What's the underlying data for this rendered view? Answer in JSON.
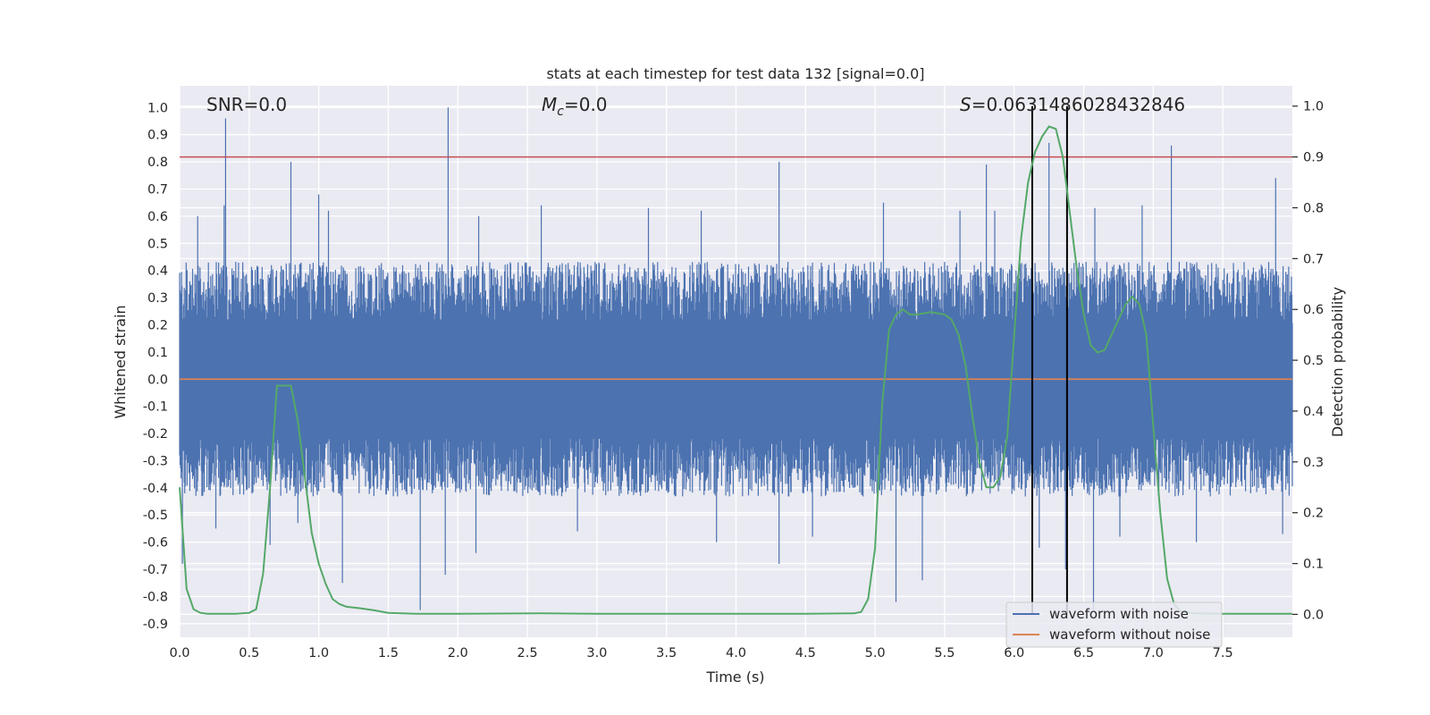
{
  "chart_data": {
    "type": "line",
    "title": "stats at each timestep for test data 132 [signal=0.0]",
    "xlabel": "Time (s)",
    "ylabel": "Whitened strain",
    "y2label": "Detection probability",
    "xlim": [
      0.0,
      8.0
    ],
    "ylim": [
      -0.95,
      1.08
    ],
    "y2lim": [
      -0.045,
      1.04
    ],
    "x_ticks": [
      "0.0",
      "0.5",
      "1.0",
      "1.5",
      "2.0",
      "2.5",
      "3.0",
      "3.5",
      "4.0",
      "4.5",
      "5.0",
      "5.5",
      "6.0",
      "6.5",
      "7.0",
      "7.5"
    ],
    "y_ticks": [
      "1.0",
      "0.9",
      "0.8",
      "0.7",
      "0.6",
      "0.5",
      "0.4",
      "0.3",
      "0.2",
      "0.1",
      "0.0",
      "-0.1",
      "-0.2",
      "-0.3",
      "-0.4",
      "-0.5",
      "-0.6",
      "-0.7",
      "-0.8",
      "-0.9"
    ],
    "y2_ticks": [
      "1.0",
      "0.9",
      "0.8",
      "0.7",
      "0.6",
      "0.5",
      "0.4",
      "0.3",
      "0.2",
      "0.1",
      "0.0"
    ],
    "annotations": {
      "snr": "SNR=0.0",
      "mc_symbol": "M",
      "mc_sub": "c",
      "mc_value": "=0.0",
      "s_symbol": "S",
      "s_value": "=0.0631486028432846"
    },
    "threshold_line": {
      "axis": "right",
      "y": 0.9,
      "color": "#c44e52"
    },
    "vertical_markers": {
      "x": [
        6.13,
        6.38
      ],
      "color": "#000000"
    },
    "series": [
      {
        "name": "waveform with noise",
        "axis": "left",
        "color": "#4c72b0",
        "envelope_upper": 0.32,
        "envelope_lower": -0.32,
        "spikes": [
          [
            0.33,
            0.96
          ],
          [
            0.8,
            0.8
          ],
          [
            1.0,
            0.68
          ],
          [
            1.93,
            1.0
          ],
          [
            4.31,
            0.8
          ],
          [
            5.8,
            0.79
          ],
          [
            6.25,
            0.87
          ],
          [
            7.13,
            0.86
          ],
          [
            7.88,
            0.74
          ],
          [
            0.32,
            0.64
          ],
          [
            0.13,
            0.6
          ],
          [
            1.07,
            0.62
          ],
          [
            2.15,
            0.6
          ],
          [
            2.6,
            0.64
          ],
          [
            3.37,
            0.63
          ],
          [
            3.75,
            0.62
          ],
          [
            5.06,
            0.65
          ],
          [
            5.61,
            0.62
          ],
          [
            5.86,
            0.62
          ],
          [
            6.58,
            0.63
          ],
          [
            6.92,
            0.64
          ],
          [
            0.02,
            -0.68
          ],
          [
            0.65,
            -0.61
          ],
          [
            1.17,
            -0.75
          ],
          [
            1.73,
            -0.85
          ],
          [
            1.91,
            -0.72
          ],
          [
            2.13,
            -0.64
          ],
          [
            3.86,
            -0.6
          ],
          [
            4.31,
            -0.68
          ],
          [
            5.15,
            -0.82
          ],
          [
            5.34,
            -0.74
          ],
          [
            6.57,
            -0.85
          ],
          [
            7.31,
            -0.6
          ],
          [
            7.93,
            -0.57
          ],
          [
            6.37,
            -0.7
          ],
          [
            0.26,
            -0.55
          ],
          [
            0.85,
            -0.53
          ],
          [
            2.86,
            -0.56
          ],
          [
            4.55,
            -0.58
          ],
          [
            6.18,
            -0.62
          ],
          [
            6.76,
            -0.58
          ]
        ]
      },
      {
        "name": "waveform without noise",
        "axis": "left",
        "color": "#dd8452",
        "x": [
          0.0,
          8.0
        ],
        "y": [
          0.0,
          0.0
        ]
      },
      {
        "name": "detection probability",
        "axis": "right",
        "color": "#55a868",
        "x": [
          0.0,
          0.05,
          0.1,
          0.15,
          0.2,
          0.3,
          0.4,
          0.5,
          0.55,
          0.6,
          0.65,
          0.7,
          0.75,
          0.8,
          0.85,
          0.9,
          0.95,
          1.0,
          1.05,
          1.1,
          1.15,
          1.2,
          1.3,
          1.4,
          1.5,
          1.7,
          2.0,
          2.6,
          3.0,
          3.5,
          4.0,
          4.5,
          4.85,
          4.9,
          4.95,
          5.0,
          5.05,
          5.1,
          5.15,
          5.2,
          5.25,
          5.3,
          5.4,
          5.5,
          5.55,
          5.6,
          5.65,
          5.7,
          5.75,
          5.8,
          5.85,
          5.9,
          5.95,
          6.0,
          6.05,
          6.1,
          6.15,
          6.2,
          6.25,
          6.3,
          6.35,
          6.4,
          6.45,
          6.5,
          6.55,
          6.6,
          6.65,
          6.7,
          6.75,
          6.8,
          6.85,
          6.9,
          6.95,
          7.0,
          7.05,
          7.1,
          7.15,
          7.2,
          7.3,
          7.5,
          8.0
        ],
        "y": [
          0.25,
          0.05,
          0.01,
          0.003,
          0.001,
          0.001,
          0.001,
          0.003,
          0.01,
          0.08,
          0.25,
          0.45,
          0.45,
          0.45,
          0.38,
          0.27,
          0.16,
          0.1,
          0.06,
          0.03,
          0.02,
          0.015,
          0.012,
          0.008,
          0.003,
          0.001,
          0.001,
          0.002,
          0.001,
          0.001,
          0.001,
          0.001,
          0.002,
          0.005,
          0.03,
          0.13,
          0.41,
          0.56,
          0.59,
          0.6,
          0.59,
          0.59,
          0.595,
          0.59,
          0.58,
          0.55,
          0.49,
          0.39,
          0.3,
          0.25,
          0.25,
          0.27,
          0.35,
          0.55,
          0.74,
          0.85,
          0.91,
          0.94,
          0.96,
          0.955,
          0.9,
          0.79,
          0.68,
          0.59,
          0.53,
          0.515,
          0.52,
          0.55,
          0.58,
          0.61,
          0.625,
          0.61,
          0.55,
          0.37,
          0.2,
          0.07,
          0.02,
          0.005,
          0.002,
          0.001,
          0.001
        ]
      }
    ],
    "legend": {
      "location": "lower right",
      "entries": [
        {
          "label": "waveform with noise",
          "color": "#4c72b0"
        },
        {
          "label": "waveform without noise",
          "color": "#dd8452"
        }
      ]
    }
  }
}
